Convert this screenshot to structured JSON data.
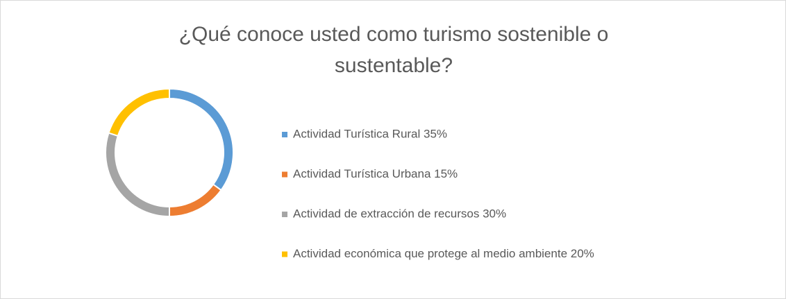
{
  "chart_data": {
    "type": "doughnut",
    "title": "¿Qué conoce usted como turismo sostenible o sustentable?",
    "categories": [
      "Actividad Turística Rural 35%",
      "Actividad Turística Urbana 15%",
      "Actividad de extracción de recursos 30%",
      "Actividad económica que protege al medio ambiente 20%"
    ],
    "values": [
      35,
      15,
      30,
      20
    ],
    "colors": [
      "#5b9bd5",
      "#ed7d31",
      "#a5a5a5",
      "#ffc000"
    ],
    "legend": "right"
  }
}
